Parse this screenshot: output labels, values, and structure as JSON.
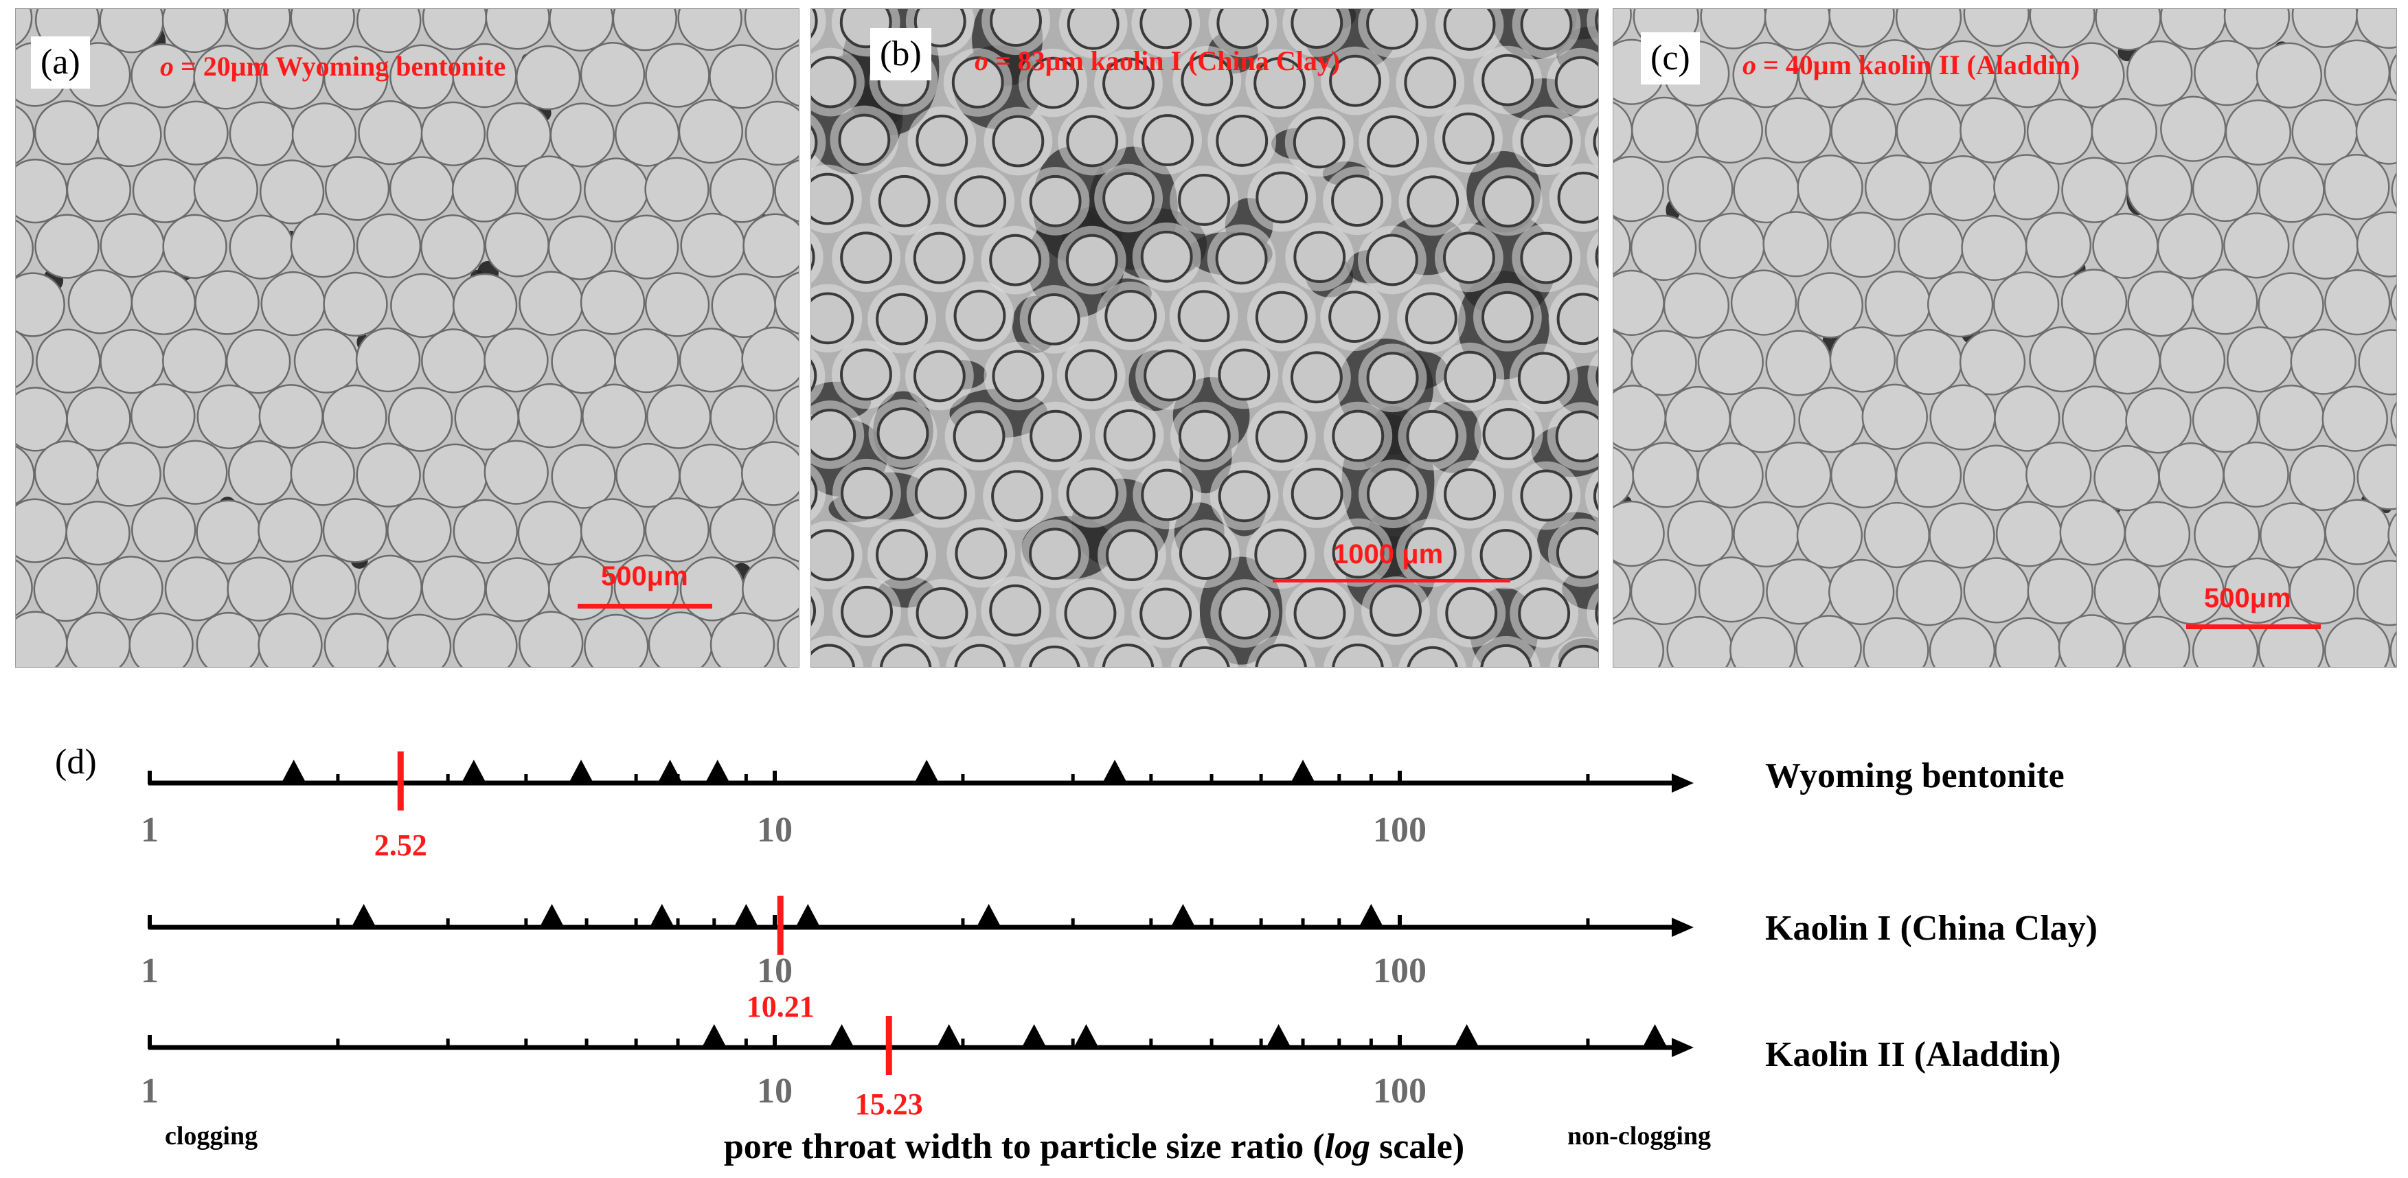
{
  "panels": [
    {
      "label": "(a)",
      "caption_symbol": "o",
      "caption_rest": " = 20μm Wyoming  bentonite",
      "scale_text": "500μm",
      "colors": {
        "background": "#c4c4c4",
        "grain": "#cfcfcf",
        "edge": "#6a6a6a",
        "pore": "#202020"
      }
    },
    {
      "label": "(b)",
      "caption_symbol": "o",
      "caption_rest": " = 83μm  kaolin  I (China  Clay)",
      "scale_text": "1000 μm",
      "colors": {
        "background": "#b0b0b0",
        "grain": "#c8c8c8",
        "edge": "#3a3a3a",
        "pore": "#2a2a2a"
      }
    },
    {
      "label": "(c)",
      "caption_symbol": "o",
      "caption_rest": " = 40μm  kaolin  II (Aladdin)",
      "scale_text": "500μm",
      "colors": {
        "background": "#c6c6c6",
        "grain": "#d0d0d0",
        "edge": "#6e6e6e",
        "pore": "#222222"
      }
    }
  ],
  "panel_d": {
    "label": "(d)",
    "clog_left": "clogging",
    "clog_right": "non-clogging",
    "xtitle_pre": "pore  throat  width  to  particle  size  ratio  (",
    "xtitle_log": "log",
    "xtitle_post": " scale)"
  },
  "chart_data": {
    "type": "scatter",
    "xlabel": "pore  throat  width  to  particle  size  ratio  (log scale)",
    "xscale": "log",
    "xlim": [
      1,
      500
    ],
    "tick_labels": [
      "1",
      "10",
      "100"
    ],
    "accent_color": "#ff1a1a",
    "marker": "triangle",
    "series": [
      {
        "name": "Wyoming  bentonite",
        "points": [
          1.7,
          3.3,
          4.9,
          6.8,
          8.1,
          17.5,
          35,
          70
        ],
        "threshold": 2.52,
        "threshold_label": "2.52"
      },
      {
        "name": "Kaolin I (China  Clay)",
        "points": [
          2.2,
          4.4,
          6.6,
          9.0,
          11.3,
          22,
          45,
          90
        ],
        "threshold": 10.21,
        "threshold_label": "10.21"
      },
      {
        "name": "Kaolin II (Aladdin)",
        "points": [
          8.0,
          12.8,
          19.0,
          26,
          31.5,
          64,
          128,
          256
        ],
        "threshold": 15.23,
        "threshold_label": "15.23"
      }
    ]
  }
}
